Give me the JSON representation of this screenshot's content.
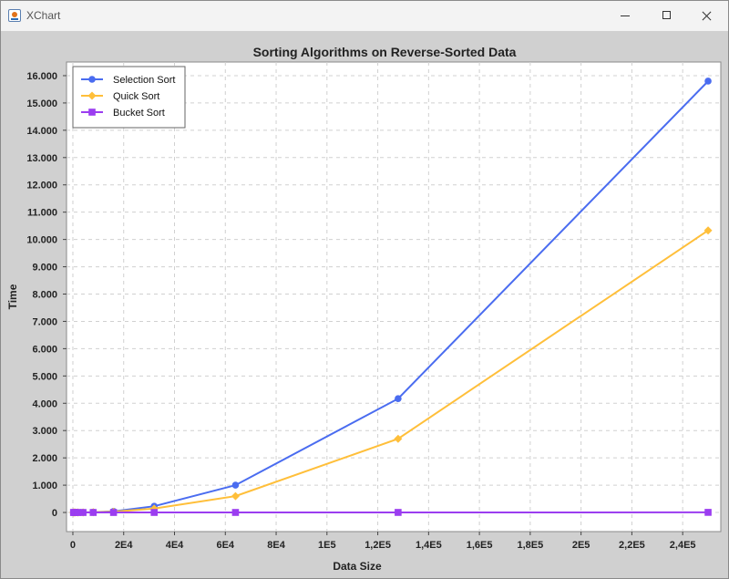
{
  "window": {
    "title": "XChart"
  },
  "chart_data": {
    "type": "line",
    "title": "Sorting Algorithms on Reverse-Sorted Data",
    "xlabel": "Data Size",
    "ylabel": "Time",
    "xlim": [
      -2500,
      255000
    ],
    "ylim": [
      -700,
      16500
    ],
    "x_ticks": [
      0,
      20000,
      40000,
      60000,
      80000,
      100000,
      120000,
      140000,
      160000,
      180000,
      200000,
      220000,
      240000
    ],
    "x_tick_labels": [
      "0",
      "2E4",
      "4E4",
      "6E4",
      "8E4",
      "1E5",
      "1,2E5",
      "1,4E5",
      "1,6E5",
      "1,8E5",
      "2E5",
      "2,2E5",
      "2,4E5"
    ],
    "y_ticks": [
      0,
      1000,
      2000,
      3000,
      4000,
      5000,
      6000,
      7000,
      8000,
      9000,
      10000,
      11000,
      12000,
      13000,
      14000,
      15000,
      16000
    ],
    "y_tick_labels": [
      "0",
      "1.000",
      "2.000",
      "3.000",
      "4.000",
      "5.000",
      "6.000",
      "7.000",
      "8.000",
      "9.000",
      "10.000",
      "11.000",
      "12.000",
      "13.000",
      "14.000",
      "15.000",
      "16.000"
    ],
    "grid": true,
    "legend_position": "top-left",
    "x": [
      250,
      500,
      1000,
      2000,
      4000,
      8000,
      16000,
      32000,
      64000,
      128000,
      250000
    ],
    "series": [
      {
        "name": "Selection Sort",
        "color": "#4a6cf0",
        "marker": "circle",
        "values": [
          0,
          0,
          0,
          1,
          3,
          12,
          40,
          230,
          1000,
          4170,
          15800
        ]
      },
      {
        "name": "Quick Sort",
        "color": "#ffbf3a",
        "marker": "diamond",
        "values": [
          0,
          0,
          0,
          1,
          2,
          8,
          28,
          140,
          600,
          2700,
          10330
        ]
      },
      {
        "name": "Bucket Sort",
        "color": "#9b3df0",
        "marker": "square",
        "values": [
          0,
          0,
          0,
          0,
          0,
          0,
          0,
          1,
          1,
          2,
          4
        ]
      }
    ]
  }
}
